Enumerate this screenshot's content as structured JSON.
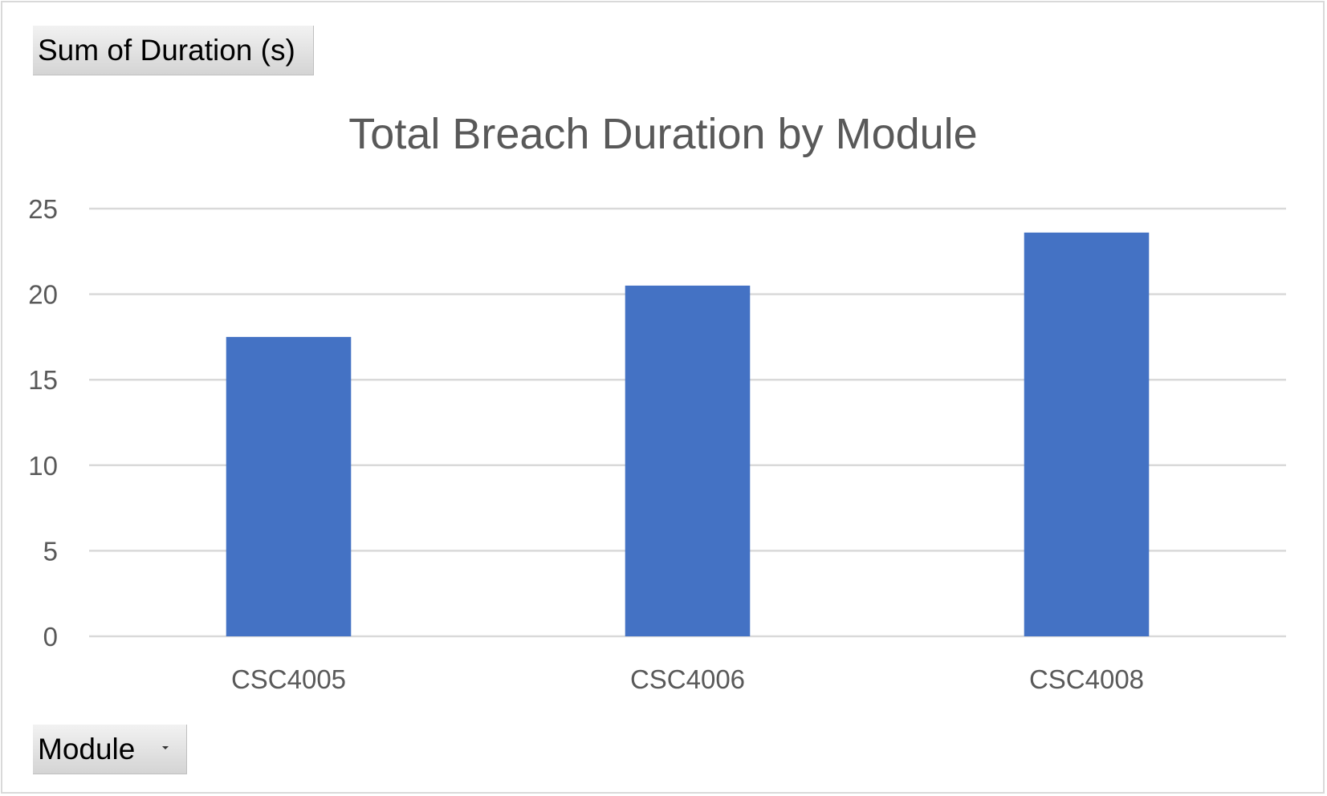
{
  "field_buttons": {
    "value_field": "Sum of Duration (s)",
    "axis_field": "Module"
  },
  "icons": {
    "axis_field_dropdown": "chevron-down-icon"
  },
  "colors": {
    "bar": "#4472C4",
    "gridline": "#D9D9D9",
    "text": "#595959"
  },
  "chart_data": {
    "type": "bar",
    "title": "Total Breach Duration by Module",
    "categories": [
      "CSC4005",
      "CSC4006",
      "CSC4008"
    ],
    "values": [
      17.5,
      20.5,
      23.6
    ],
    "xlabel": "",
    "ylabel": "",
    "ylim": [
      0,
      25
    ],
    "yticks": [
      0,
      5,
      10,
      15,
      20,
      25
    ],
    "grid": true,
    "legend": "none"
  }
}
